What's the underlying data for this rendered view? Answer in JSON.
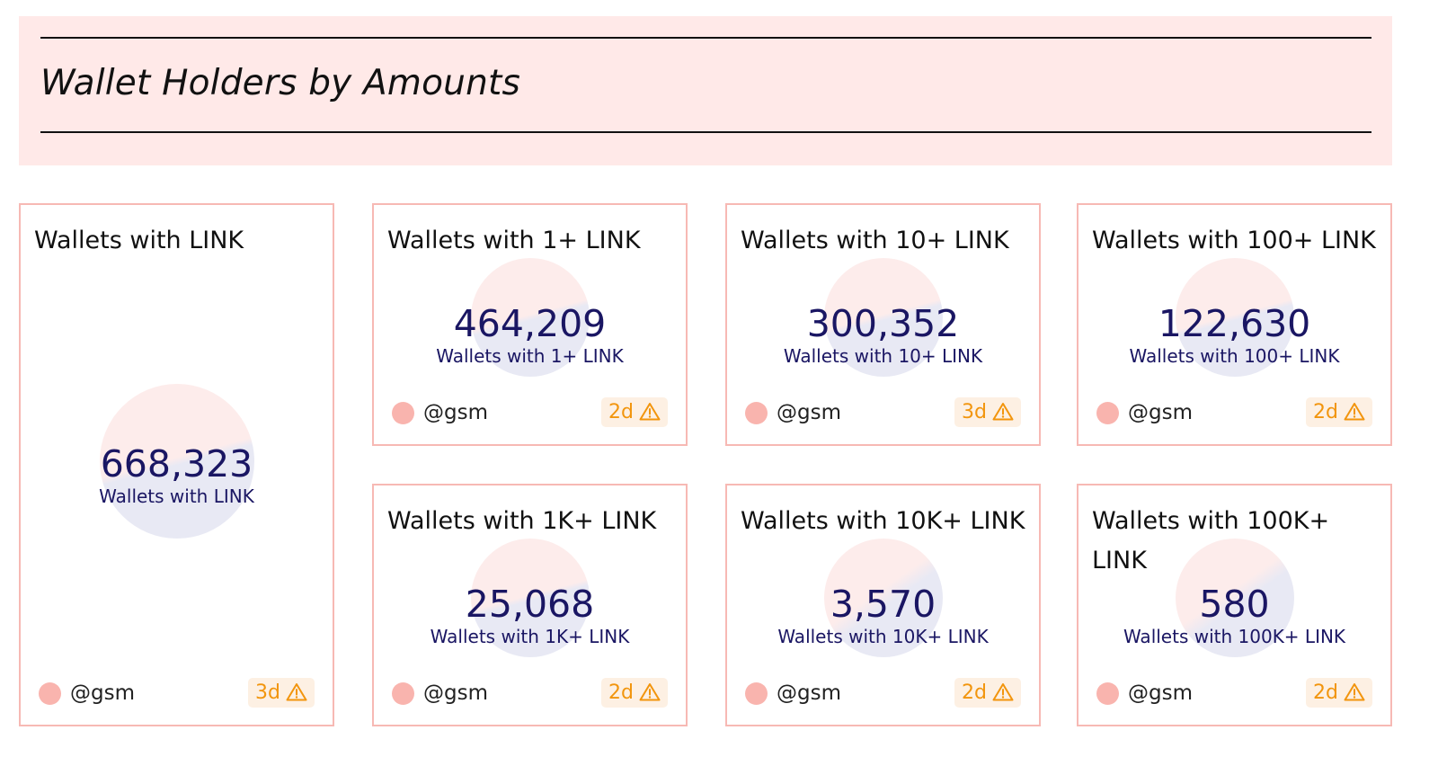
{
  "header": {
    "title": "Wallet Holders by Amounts"
  },
  "cards": [
    {
      "title": "Wallets with LINK",
      "value": "668,323",
      "label": "Wallets with LINK",
      "author": "@gsm",
      "age": "3d"
    },
    {
      "title": "Wallets with 1+ LINK",
      "value": "464,209",
      "label": "Wallets with 1+ LINK",
      "author": "@gsm",
      "age": "2d"
    },
    {
      "title": "Wallets with 10+ LINK",
      "value": "300,352",
      "label": "Wallets with 10+ LINK",
      "author": "@gsm",
      "age": "3d"
    },
    {
      "title": "Wallets with 100+ LINK",
      "value": "122,630",
      "label": "Wallets with 100+ LINK",
      "author": "@gsm",
      "age": "2d"
    },
    {
      "title": "Wallets with 1K+ LINK",
      "value": "25,068",
      "label": "Wallets with 1K+ LINK",
      "author": "@gsm",
      "age": "2d"
    },
    {
      "title": "Wallets with 10K+ LINK",
      "value": "3,570",
      "label": "Wallets with 10K+ LINK",
      "author": "@gsm",
      "age": "2d"
    },
    {
      "title": "Wallets with 100K+ LINK",
      "value": "580",
      "label": "Wallets with 100K+ LINK",
      "author": "@gsm",
      "age": "2d"
    }
  ],
  "colors": {
    "header_bg": "#ffe9e8",
    "card_border": "#f7b9b4",
    "counter_text": "#1a1663",
    "badge_text": "#f2950d",
    "badge_bg": "#fdf0e3",
    "avatar": "#f9b4ae"
  },
  "icons": {
    "badge": "warning-triangle-icon",
    "avatar": "user-avatar"
  }
}
